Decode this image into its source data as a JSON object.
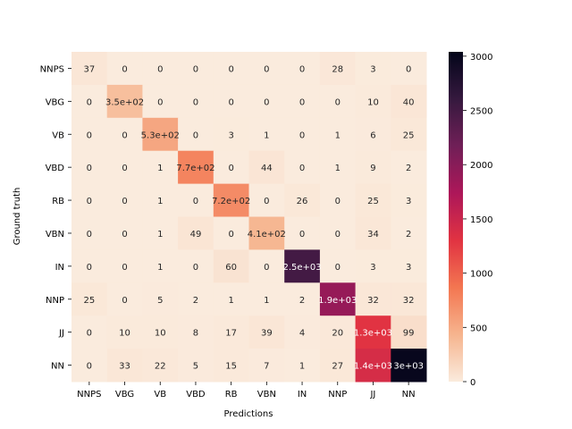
{
  "chart_data": {
    "type": "heatmap",
    "title": "",
    "xlabel": "Predictions",
    "ylabel": "Ground truth",
    "x_categories": [
      "NNPS",
      "VBG",
      "VB",
      "VBD",
      "RB",
      "VBN",
      "IN",
      "NNP",
      "JJ",
      "NN"
    ],
    "y_categories": [
      "NNPS",
      "VBG",
      "VB",
      "VBD",
      "RB",
      "VBN",
      "IN",
      "NNP",
      "JJ",
      "NN"
    ],
    "values": [
      [
        37,
        0,
        0,
        0,
        0,
        0,
        0,
        28,
        3,
        0
      ],
      [
        0,
        350,
        0,
        0,
        0,
        0,
        0,
        0,
        10,
        40
      ],
      [
        0,
        0,
        530,
        0,
        3,
        1,
        0,
        1,
        6,
        25
      ],
      [
        0,
        0,
        1,
        770,
        0,
        44,
        0,
        1,
        9,
        2
      ],
      [
        0,
        0,
        1,
        0,
        720,
        0,
        26,
        0,
        25,
        3
      ],
      [
        0,
        0,
        1,
        49,
        0,
        410,
        0,
        0,
        34,
        2
      ],
      [
        0,
        0,
        1,
        0,
        60,
        0,
        2500,
        0,
        3,
        3
      ],
      [
        25,
        0,
        5,
        2,
        1,
        1,
        2,
        1900,
        32,
        32
      ],
      [
        0,
        10,
        10,
        8,
        17,
        39,
        4,
        20,
        1300,
        99
      ],
      [
        0,
        33,
        22,
        5,
        15,
        7,
        1,
        27,
        1400,
        3000
      ]
    ],
    "labels": [
      [
        "37",
        "0",
        "0",
        "0",
        "0",
        "0",
        "0",
        "28",
        "3",
        "0"
      ],
      [
        "0",
        "3.5e+02",
        "0",
        "0",
        "0",
        "0",
        "0",
        "0",
        "10",
        "40"
      ],
      [
        "0",
        "0",
        "5.3e+02",
        "0",
        "3",
        "1",
        "0",
        "1",
        "6",
        "25"
      ],
      [
        "0",
        "0",
        "1",
        "7.7e+02",
        "0",
        "44",
        "0",
        "1",
        "9",
        "2"
      ],
      [
        "0",
        "0",
        "1",
        "0",
        "7.2e+02",
        "0",
        "26",
        "0",
        "25",
        "3"
      ],
      [
        "0",
        "0",
        "1",
        "49",
        "0",
        "4.1e+02",
        "0",
        "0",
        "34",
        "2"
      ],
      [
        "0",
        "0",
        "1",
        "0",
        "60",
        "0",
        "2.5e+03",
        "0",
        "3",
        "3"
      ],
      [
        "25",
        "0",
        "5",
        "2",
        "1",
        "1",
        "2",
        "1.9e+03",
        "32",
        "32"
      ],
      [
        "0",
        "10",
        "10",
        "8",
        "17",
        "39",
        "4",
        "20",
        "1.3e+03",
        "99"
      ],
      [
        "0",
        "33",
        "22",
        "5",
        "15",
        "7",
        "1",
        "27",
        "1.4e+03",
        "3e+03"
      ]
    ],
    "colorbar": {
      "min": 0,
      "max": 3040,
      "ticks": [
        0,
        500,
        1000,
        1500,
        2000,
        2500,
        3000
      ]
    },
    "colormap": [
      "#faebdd",
      "#f6b48e",
      "#f37651",
      "#e13342",
      "#ad1759",
      "#701f57",
      "#35193e",
      "#03051a"
    ]
  }
}
